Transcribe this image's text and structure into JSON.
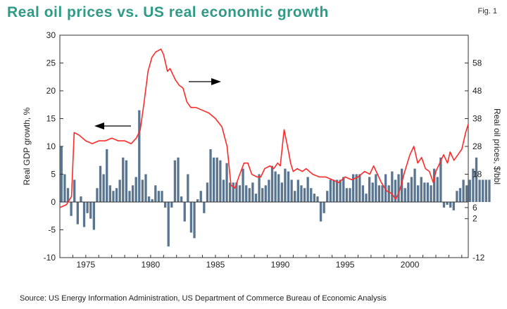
{
  "title": "Real oil prices vs. US real economic growth",
  "figure_label": "Fig. 1",
  "source": "Source: US Energy Information Administration, US Department of Commerce Bureau of Economic Analysis",
  "colors": {
    "bar": "#5a7590",
    "line": "#ff2a2a",
    "title": "#2f9a86",
    "frame": "#333333"
  },
  "chart_data": {
    "type": "bar+line",
    "title": "Real oil prices vs. US real economic growth",
    "xlabel": "",
    "ylabel_left": "Real GDP growth, %",
    "ylabel_right": "Real oil prices, $/bbl",
    "xlim": [
      1973,
      2004.5
    ],
    "ylim_left": [
      -10,
      30
    ],
    "ylim_right": [
      -12,
      68
    ],
    "x_ticks": [
      "1975",
      "1980",
      "1985",
      "1990",
      "1995",
      "2000"
    ],
    "left_ticks": [
      "-10",
      "-5",
      "0",
      "5",
      "10",
      "15",
      "20",
      "25",
      "30"
    ],
    "right_ticks": [
      "-12",
      "2",
      "6",
      "18",
      "28",
      "38",
      "48",
      "58"
    ],
    "grid": false,
    "series": [
      {
        "name": "Real GDP growth (quarterly, %)",
        "type": "bar",
        "axis": "left",
        "start_year": 1973.0,
        "step": 0.25,
        "values": [
          10,
          5,
          2.5,
          -2.5,
          4,
          -4,
          1,
          -4.5,
          -2,
          -3,
          -5,
          2.5,
          6.5,
          5,
          9.5,
          3,
          2,
          2.5,
          4,
          8,
          7.5,
          2,
          3,
          4.5,
          16.5,
          4,
          5,
          1,
          0.5,
          3,
          2,
          2,
          -1,
          -8,
          -1,
          7.5,
          8,
          1,
          -3.5,
          5,
          -5.5,
          -6.5,
          0.5,
          2,
          -2,
          3.5,
          9.5,
          8,
          8,
          7.5,
          4,
          7,
          3.5,
          3.5,
          3.5,
          3,
          6,
          3,
          2.5,
          3.5,
          1.5,
          5,
          2.5,
          3,
          4,
          6.5,
          5.5,
          5,
          3.5,
          6,
          5.5,
          4,
          2,
          4,
          3,
          2.5,
          4.5,
          2.5,
          1.5,
          1,
          -3.5,
          -2,
          2,
          4,
          4,
          4,
          4,
          4.5,
          2.5,
          2.5,
          5,
          5,
          5,
          3,
          1.5,
          4.5,
          3.5,
          5,
          3,
          3,
          5,
          3,
          5.5,
          4,
          5,
          6,
          2.5,
          3.5,
          4.5,
          6,
          3,
          4.5,
          3.5,
          3.5,
          3,
          6,
          4.5,
          8,
          -1,
          -0.5,
          -1,
          -1.5,
          2,
          2.5,
          4,
          3,
          4,
          6,
          8,
          4,
          4,
          4,
          4
        ]
      },
      {
        "name": "Real oil prices ($/bbl)",
        "type": "line",
        "axis": "right",
        "x": [
          1973.0,
          1973.5,
          1973.9,
          1974.1,
          1974.5,
          1975.0,
          1975.5,
          1976.0,
          1976.5,
          1977.0,
          1977.5,
          1978.0,
          1978.5,
          1978.9,
          1979.2,
          1979.5,
          1979.8,
          1980.1,
          1980.4,
          1980.8,
          1981.0,
          1981.3,
          1981.5,
          1981.9,
          1982.2,
          1982.5,
          1982.8,
          1983.1,
          1983.5,
          1984.0,
          1984.5,
          1985.0,
          1985.5,
          1985.9,
          1986.2,
          1986.5,
          1986.8,
          1987.2,
          1987.5,
          1987.8,
          1988.2,
          1988.5,
          1988.8,
          1989.2,
          1989.5,
          1989.8,
          1990.0,
          1990.3,
          1990.6,
          1990.8,
          1991.0,
          1991.3,
          1991.7,
          1992.0,
          1992.5,
          1993.0,
          1993.5,
          1994.0,
          1994.5,
          1995.0,
          1995.5,
          1996.0,
          1996.5,
          1996.9,
          1997.2,
          1997.5,
          1997.8,
          1998.2,
          1998.6,
          1998.9,
          1999.2,
          1999.6,
          2000.0,
          2000.3,
          2000.6,
          2000.9,
          2001.2,
          2001.5,
          2001.8,
          2002.0,
          2002.3,
          2002.6,
          2002.9,
          2003.1,
          2003.4,
          2003.7,
          2004.0,
          2004.3,
          2004.5
        ],
        "values": [
          6,
          7,
          10,
          33,
          32,
          30,
          29,
          30,
          30,
          31,
          30,
          30,
          29,
          31,
          34,
          44,
          55,
          60,
          62,
          63,
          61,
          55,
          56,
          52,
          50,
          49,
          44,
          42,
          42,
          41,
          40,
          38,
          35,
          28,
          14,
          13,
          17,
          22,
          22,
          18,
          17,
          17,
          20,
          21,
          20,
          22,
          21,
          34,
          27,
          22,
          19,
          20,
          19,
          20,
          18,
          17,
          17,
          16,
          15,
          17,
          16,
          17,
          19,
          18,
          21,
          18,
          15,
          12,
          11,
          9,
          12,
          19,
          25,
          28,
          22,
          24,
          20,
          19,
          15,
          19,
          22,
          25,
          22,
          26,
          23,
          25,
          27,
          33,
          36
        ]
      }
    ],
    "annotations": [
      {
        "type": "arrow",
        "direction": "left",
        "points_to_axis": "left"
      },
      {
        "type": "arrow",
        "direction": "right",
        "points_to_axis": "right"
      }
    ]
  }
}
